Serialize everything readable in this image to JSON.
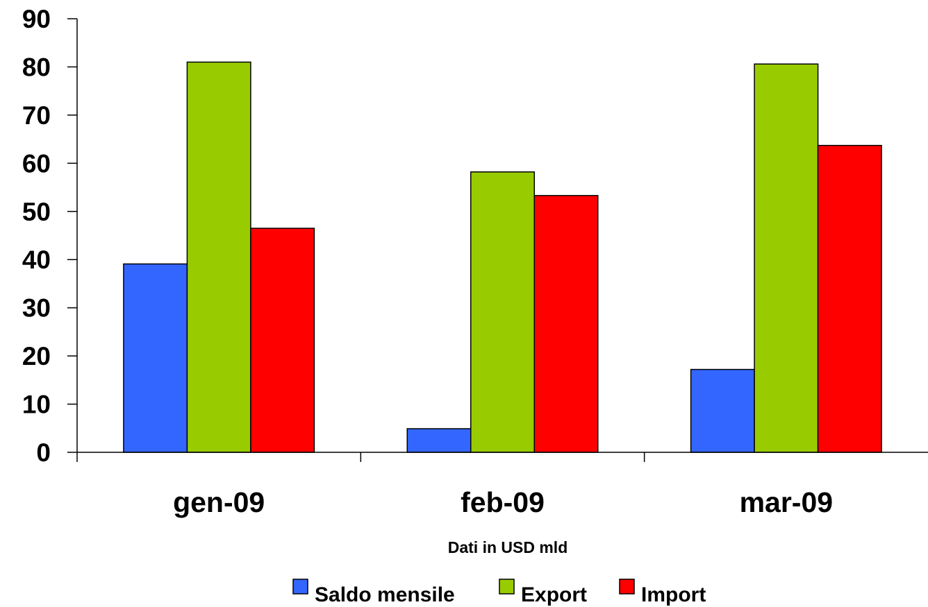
{
  "chart_data": {
    "type": "bar",
    "title": "",
    "xlabel": "Dati in USD mld",
    "ylabel": "",
    "ylim": [
      0,
      90
    ],
    "yticks": [
      0,
      10,
      20,
      30,
      40,
      50,
      60,
      70,
      80,
      90
    ],
    "categories": [
      "gen-09",
      "feb-09",
      "mar-09"
    ],
    "series": [
      {
        "name": "Saldo mensile",
        "color": "#3366FF",
        "values": [
          39.1,
          4.9,
          17.2
        ]
      },
      {
        "name": "Export",
        "color": "#99CC00",
        "values": [
          81.0,
          58.2,
          80.6
        ]
      },
      {
        "name": "Import",
        "color": "#FF0000",
        "values": [
          46.5,
          53.3,
          63.7
        ]
      }
    ],
    "grid": false,
    "legend": {
      "position": "bottom"
    }
  }
}
